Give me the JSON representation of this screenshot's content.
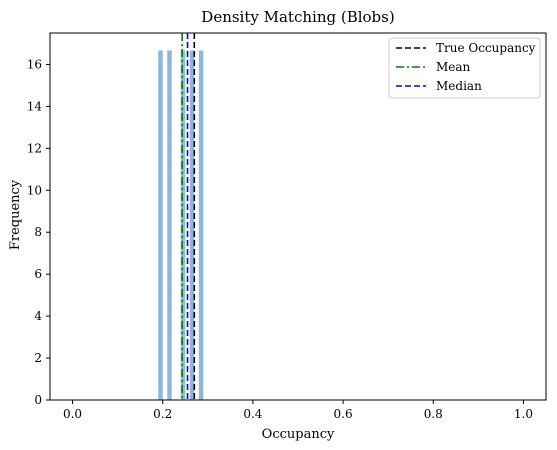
{
  "chart_data": {
    "type": "histogram",
    "title": "Density Matching (Blobs)",
    "xlabel": "Occupancy",
    "ylabel": "Frequency",
    "xlim": [
      -0.05,
      1.05
    ],
    "ylim": [
      0,
      17.5
    ],
    "xticks": [
      0.0,
      0.2,
      0.4,
      0.6,
      0.8,
      1.0
    ],
    "xtick_labels": [
      "0.0",
      "0.2",
      "0.4",
      "0.6",
      "0.8",
      "1.0"
    ],
    "yticks": [
      0,
      2,
      4,
      6,
      8,
      10,
      12,
      14,
      16
    ],
    "ytick_labels": [
      "0",
      "2",
      "4",
      "6",
      "8",
      "10",
      "12",
      "14",
      "16"
    ],
    "grid": false,
    "bar_color": "#8fb8d8",
    "bars": [
      {
        "x": 0.195,
        "height": 16.67
      },
      {
        "x": 0.215,
        "height": 16.67
      },
      {
        "x": 0.245,
        "height": 16.67
      },
      {
        "x": 0.265,
        "height": 16.67
      },
      {
        "x": 0.285,
        "height": 16.67
      }
    ],
    "bar_width": 0.01,
    "vlines": [
      {
        "name": "True Occupancy",
        "x": 0.27,
        "color": "#000000",
        "style": "dashed"
      },
      {
        "name": "Mean",
        "x": 0.243,
        "color": "#008000",
        "style": "dashdot"
      },
      {
        "name": "Median",
        "x": 0.255,
        "color": "#0000ff",
        "style": "dashed"
      }
    ],
    "legend": {
      "position": "top-right",
      "entries": [
        "True Occupancy",
        "Mean",
        "Median"
      ]
    }
  }
}
